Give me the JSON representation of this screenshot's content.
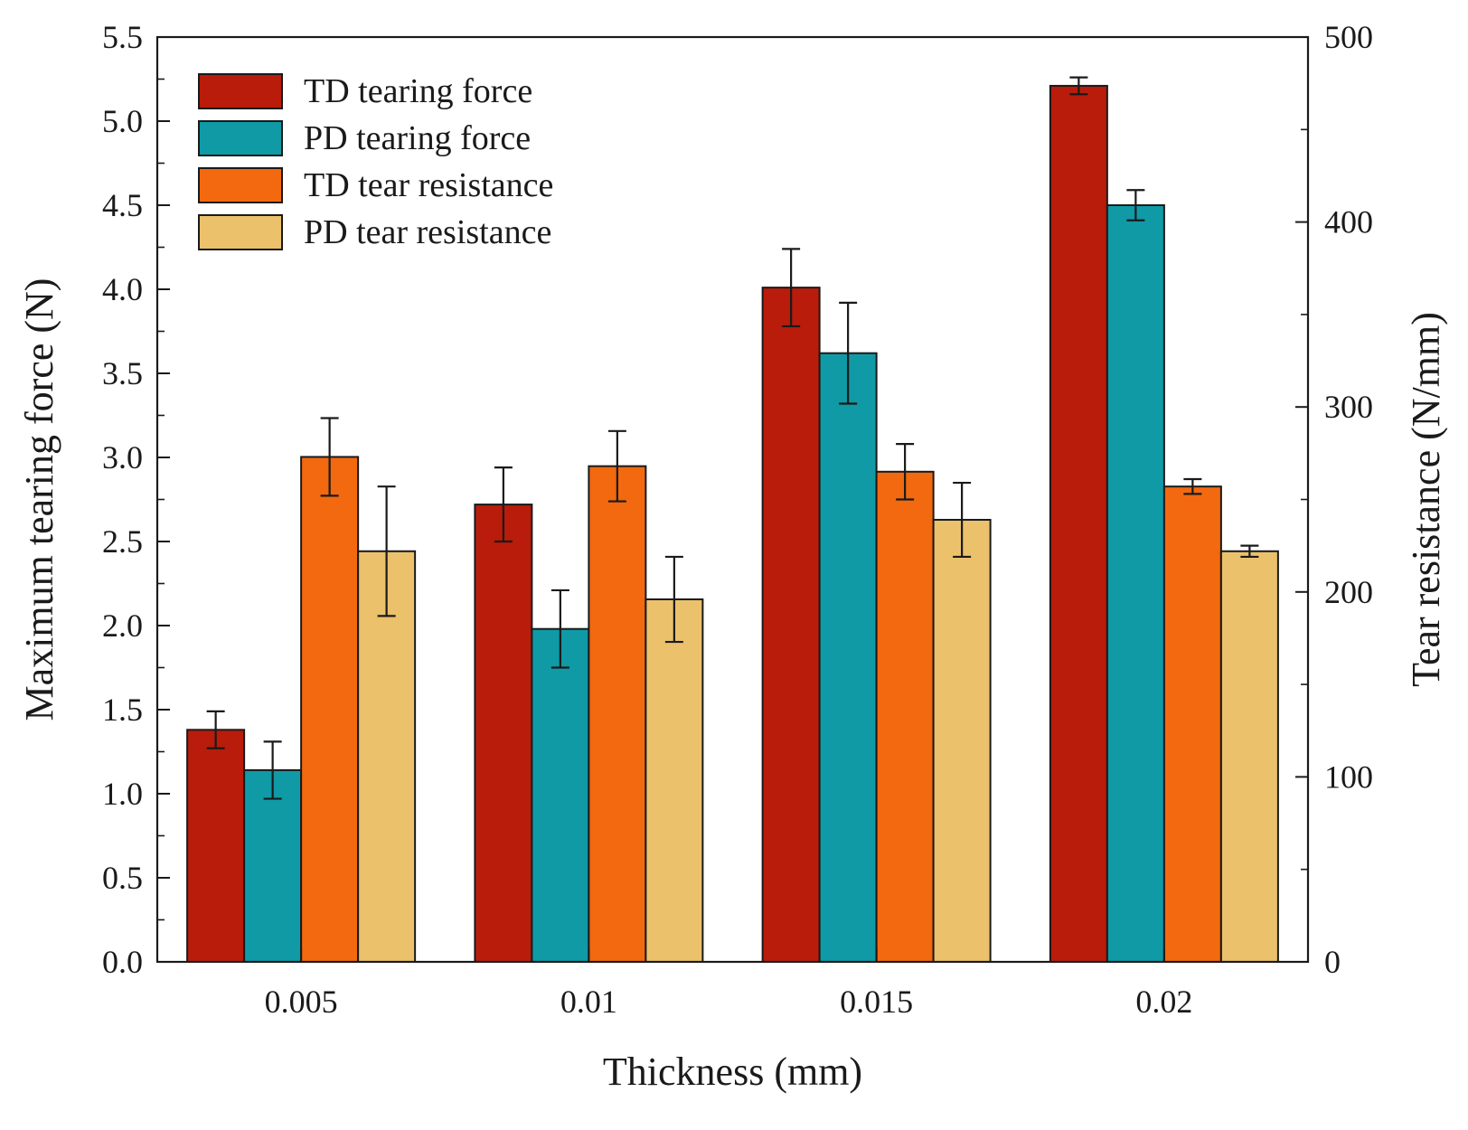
{
  "chart_data": {
    "type": "bar",
    "xlabel": "Thickness (mm)",
    "ylabel_left": "Maximum tearing force (N)",
    "ylabel_right": "Tear resistance  (N/mm)",
    "categories": [
      "0.005",
      "0.01",
      "0.015",
      "0.02"
    ],
    "ylim_left": [
      0,
      5.5
    ],
    "ylim_right": [
      0,
      500
    ],
    "yticks_left": [
      "0.0",
      "0.5",
      "1.0",
      "1.5",
      "2.0",
      "2.5",
      "3.0",
      "3.5",
      "4.0",
      "4.5",
      "5.0",
      "5.5"
    ],
    "yticks_right": [
      "0",
      "100",
      "200",
      "300",
      "400",
      "500"
    ],
    "legend_position": "top-left",
    "grid": false,
    "series": [
      {
        "name": "TD tearing force",
        "axis": "left",
        "color": "#b91c0a",
        "values": [
          1.38,
          2.72,
          4.01,
          5.21
        ],
        "errors": [
          0.11,
          0.22,
          0.23,
          0.05
        ]
      },
      {
        "name": "PD tearing force",
        "axis": "left",
        "color": "#0f9aa6",
        "values": [
          1.14,
          1.98,
          3.62,
          4.5
        ],
        "errors": [
          0.17,
          0.23,
          0.3,
          0.09
        ]
      },
      {
        "name": "TD tear resistance",
        "axis": "right",
        "color": "#f2690f",
        "values": [
          273,
          268,
          265,
          257
        ],
        "errors": [
          21,
          19,
          15,
          4
        ]
      },
      {
        "name": "PD tear resistance",
        "axis": "right",
        "color": "#ebc16b",
        "values": [
          222,
          196,
          239,
          222
        ],
        "errors": [
          35,
          23,
          20,
          3
        ]
      }
    ]
  }
}
